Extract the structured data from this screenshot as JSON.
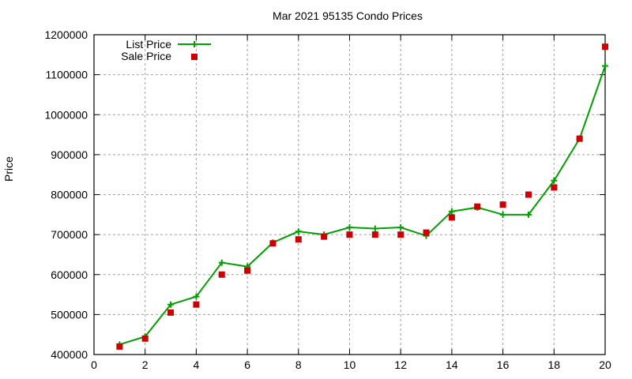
{
  "chart_data": {
    "type": "line",
    "title": "Mar 2021 95135 Condo Prices",
    "xlabel": "",
    "ylabel": "Price",
    "xlim": [
      0,
      20
    ],
    "ylim": [
      400000,
      1200000
    ],
    "xticks": [
      0,
      2,
      4,
      6,
      8,
      10,
      12,
      14,
      16,
      18,
      20
    ],
    "yticks": [
      400000,
      500000,
      600000,
      700000,
      800000,
      900000,
      1000000,
      1100000,
      1200000
    ],
    "grid": true,
    "legend_position": "top-left",
    "x": [
      1,
      2,
      3,
      4,
      5,
      6,
      7,
      8,
      9,
      10,
      11,
      12,
      13,
      14,
      15,
      16,
      17,
      18,
      19,
      20
    ],
    "series": [
      {
        "name": "List Price",
        "style": "line+cross",
        "color": "#00a000",
        "values": [
          425000,
          445000,
          525000,
          545000,
          630000,
          620000,
          680000,
          708000,
          700000,
          718000,
          715000,
          718000,
          697000,
          758000,
          768000,
          750000,
          750000,
          835000,
          940000,
          1122000
        ]
      },
      {
        "name": "Sale Price",
        "style": "square",
        "color": "#cc0000",
        "values": [
          420000,
          440000,
          505000,
          525000,
          600000,
          610000,
          678000,
          688000,
          695000,
          700000,
          700000,
          700000,
          705000,
          743000,
          770000,
          775000,
          800000,
          818000,
          940000,
          1170000
        ]
      }
    ]
  }
}
